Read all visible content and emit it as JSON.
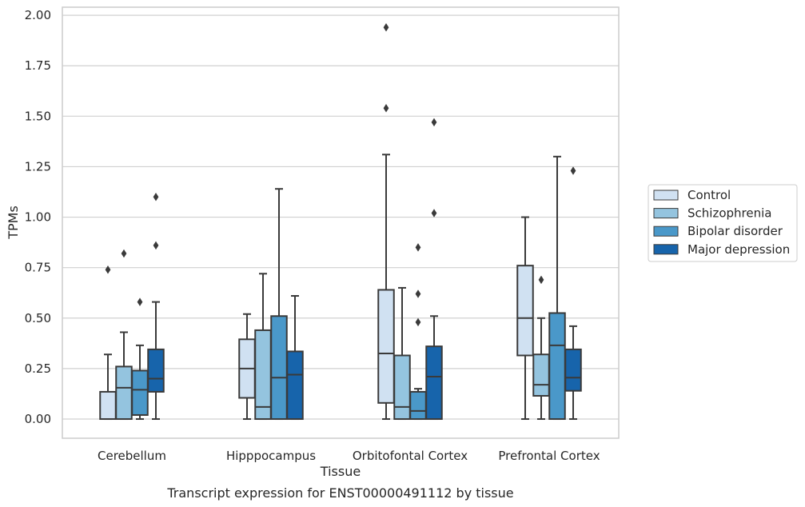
{
  "caption": "Transcript expression for ENST00000491112 by tissue",
  "chart_data": {
    "type": "box",
    "xlabel": "Tissue",
    "ylabel": "TPMs",
    "ylim": [
      -0.095,
      2.04
    ],
    "yticks": [
      "0.00",
      "0.25",
      "0.50",
      "0.75",
      "1.00",
      "1.25",
      "1.50",
      "1.75",
      "2.00"
    ],
    "grid": "horizontal",
    "legend_position": "right",
    "categories": [
      "Cerebellum",
      "Hipppocampus",
      "Orbitofontal Cortex",
      "Prefrontal Cortex"
    ],
    "series": [
      {
        "name": "Control",
        "color": "#d0e1f2",
        "boxes": [
          {
            "q1": 0.0,
            "median": 0.0,
            "q3": 0.135,
            "whislo": 0.0,
            "whishi": 0.32,
            "fliers": [
              0.74
            ]
          },
          {
            "q1": 0.105,
            "median": 0.25,
            "q3": 0.395,
            "whislo": 0.0,
            "whishi": 0.52,
            "fliers": []
          },
          {
            "q1": 0.08,
            "median": 0.325,
            "q3": 0.64,
            "whislo": 0.0,
            "whishi": 1.31,
            "fliers": [
              1.54,
              1.94
            ]
          },
          {
            "q1": 0.315,
            "median": 0.5,
            "q3": 0.76,
            "whislo": 0.0,
            "whishi": 1.0,
            "fliers": []
          }
        ]
      },
      {
        "name": "Schizophrenia",
        "color": "#94c4df",
        "boxes": [
          {
            "q1": 0.0,
            "median": 0.155,
            "q3": 0.26,
            "whislo": 0.0,
            "whishi": 0.43,
            "fliers": [
              0.82
            ]
          },
          {
            "q1": 0.0,
            "median": 0.06,
            "q3": 0.44,
            "whislo": 0.0,
            "whishi": 0.72,
            "fliers": []
          },
          {
            "q1": 0.0,
            "median": 0.06,
            "q3": 0.315,
            "whislo": 0.0,
            "whishi": 0.65,
            "fliers": []
          },
          {
            "q1": 0.115,
            "median": 0.17,
            "q3": 0.32,
            "whislo": 0.0,
            "whishi": 0.5,
            "fliers": [
              0.69
            ]
          }
        ]
      },
      {
        "name": "Bipolar disorder",
        "color": "#4a98c9",
        "boxes": [
          {
            "q1": 0.02,
            "median": 0.145,
            "q3": 0.24,
            "whislo": 0.0,
            "whishi": 0.365,
            "fliers": [
              0.58
            ]
          },
          {
            "q1": 0.0,
            "median": 0.205,
            "q3": 0.51,
            "whislo": 0.0,
            "whishi": 1.14,
            "fliers": []
          },
          {
            "q1": 0.0,
            "median": 0.04,
            "q3": 0.135,
            "whislo": 0.0,
            "whishi": 0.15,
            "fliers": [
              0.48,
              0.62,
              0.85
            ]
          },
          {
            "q1": 0.0,
            "median": 0.365,
            "q3": 0.525,
            "whislo": 0.0,
            "whishi": 1.3,
            "fliers": []
          }
        ]
      },
      {
        "name": "Major depression",
        "color": "#1764ab",
        "boxes": [
          {
            "q1": 0.135,
            "median": 0.2,
            "q3": 0.345,
            "whislo": 0.0,
            "whishi": 0.58,
            "fliers": [
              0.86,
              1.1
            ]
          },
          {
            "q1": 0.0,
            "median": 0.22,
            "q3": 0.335,
            "whislo": 0.0,
            "whishi": 0.61,
            "fliers": []
          },
          {
            "q1": 0.0,
            "median": 0.21,
            "q3": 0.36,
            "whislo": 0.0,
            "whishi": 0.51,
            "fliers": [
              1.02,
              1.47
            ]
          },
          {
            "q1": 0.14,
            "median": 0.205,
            "q3": 0.345,
            "whislo": 0.0,
            "whishi": 0.46,
            "fliers": [
              1.23
            ]
          }
        ]
      }
    ]
  }
}
